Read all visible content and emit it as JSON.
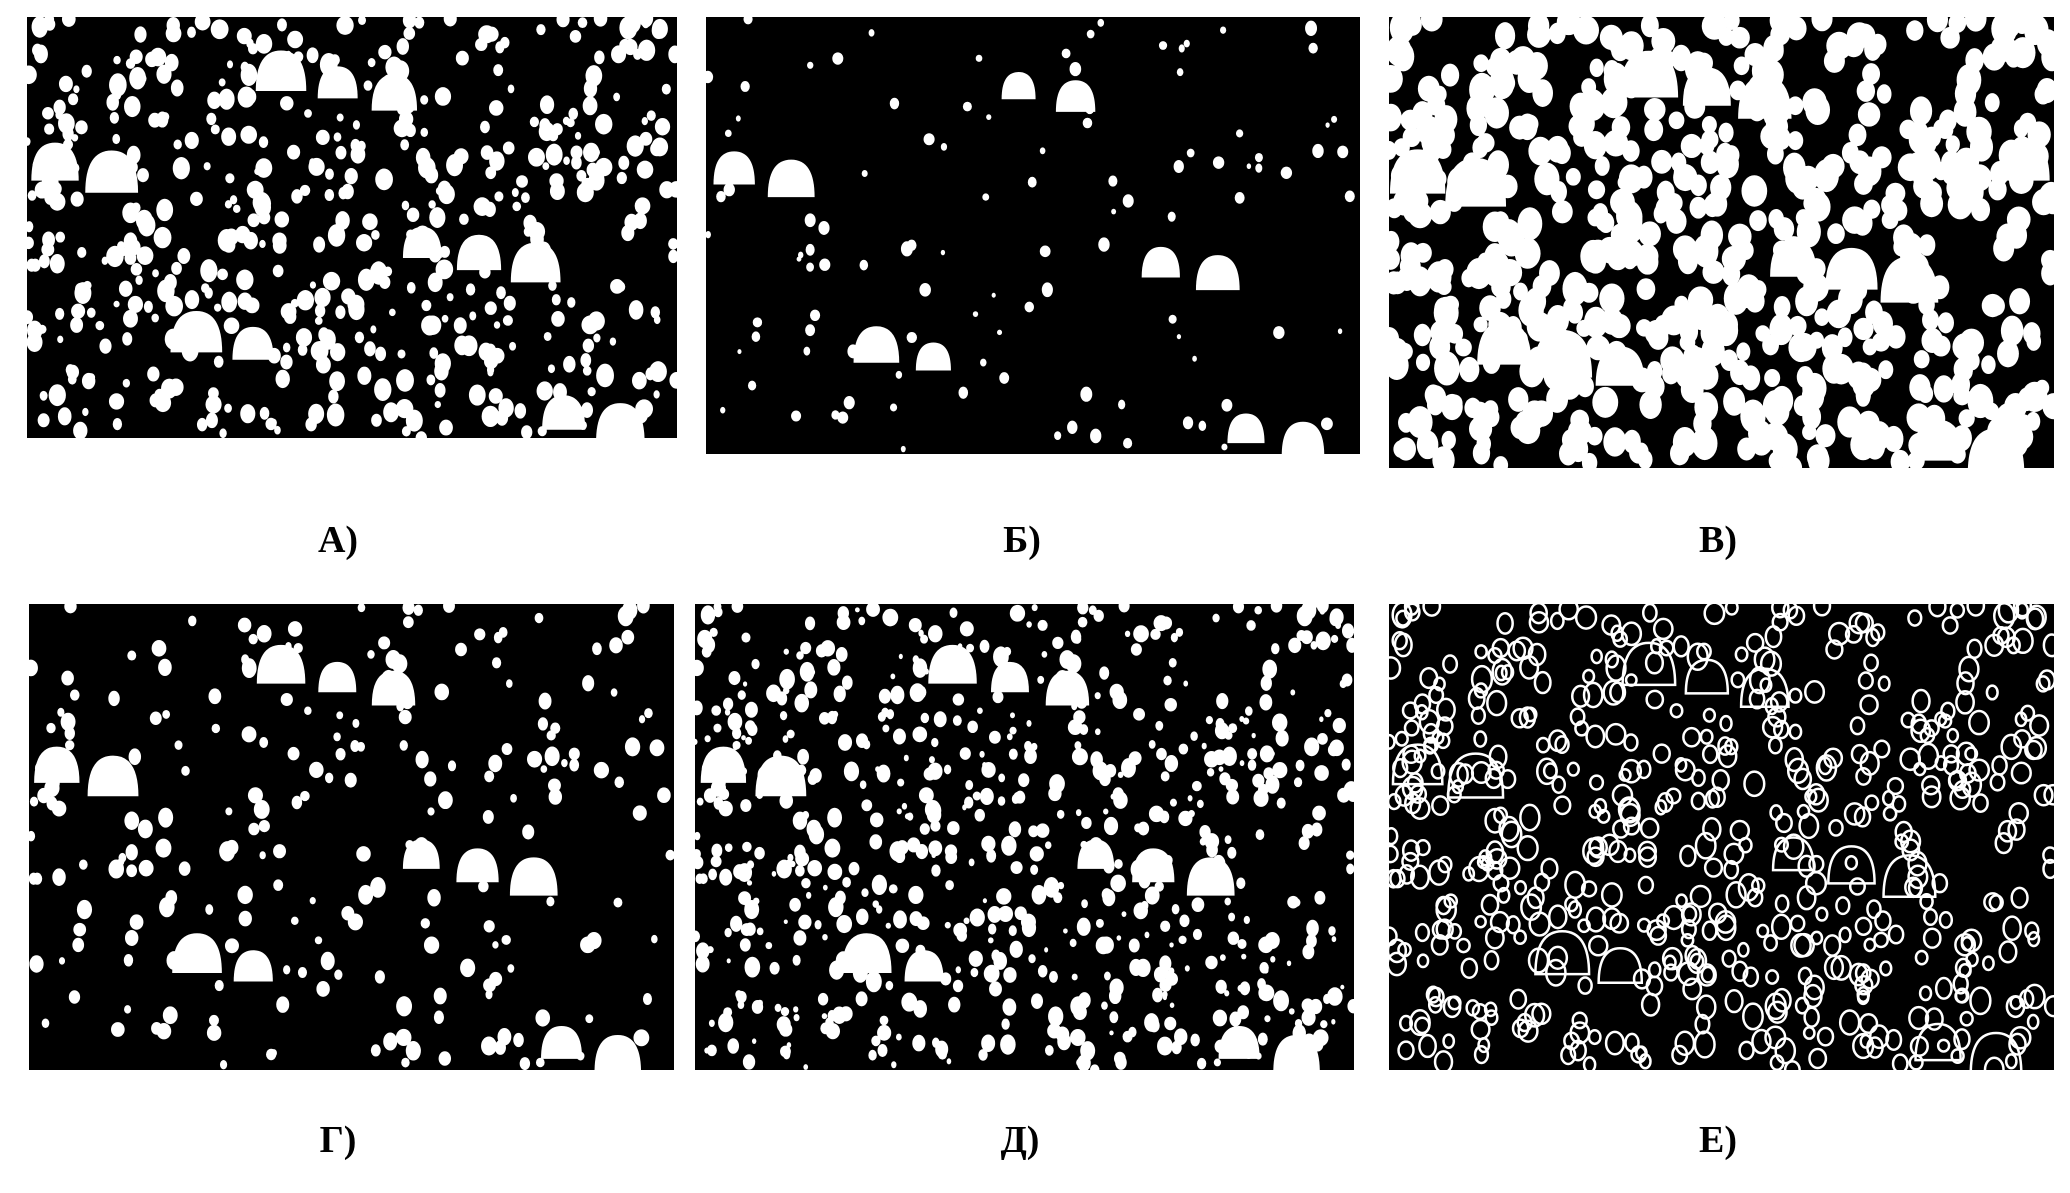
{
  "figure": {
    "panels": [
      {
        "label": "А)",
        "style": "dense-filled"
      },
      {
        "label": "Б)",
        "style": "sparse-filled"
      },
      {
        "label": "В)",
        "style": "dilated-filled"
      },
      {
        "label": "Г)",
        "style": "medium-filled"
      },
      {
        "label": "Д)",
        "style": "dense-noisy-filled"
      },
      {
        "label": "Е)",
        "style": "contours"
      }
    ],
    "colors": {
      "background": "#000000",
      "foreground": "#ffffff"
    }
  }
}
